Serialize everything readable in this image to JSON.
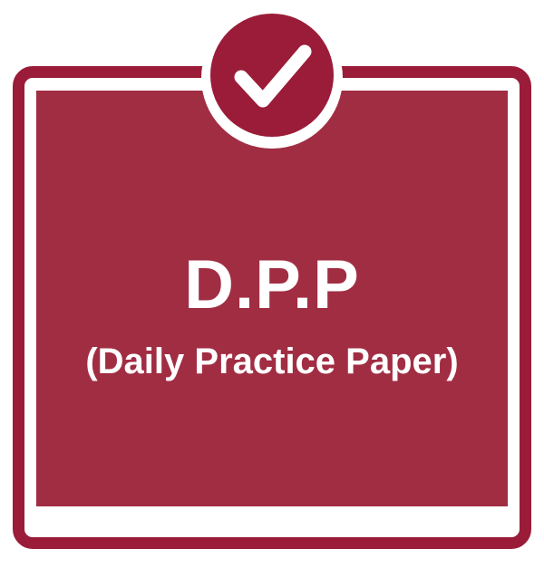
{
  "badge": {
    "icon": "checkmark-icon"
  },
  "card": {
    "title": "D.P.P",
    "subtitle": "(Daily Practice Paper)"
  },
  "colors": {
    "frame": "#9b1c38",
    "panel": "#a12d43",
    "text": "#ffffff"
  }
}
